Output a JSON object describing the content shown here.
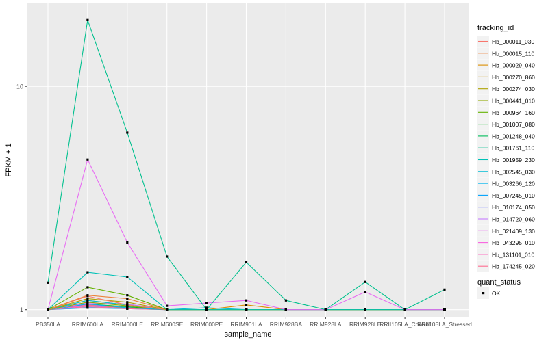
{
  "chart_data": {
    "type": "line",
    "xlabel": "sample_name",
    "ylabel": "FPKM + 1",
    "y_scale": "log10",
    "ylim": [
      0.93,
      23.5
    ],
    "y_ticks": [
      {
        "value": 1,
        "label": "1"
      },
      {
        "value": 10,
        "label": "10"
      }
    ],
    "grid": true,
    "categories": [
      "PB350LA",
      "RRIM600LA",
      "RRIM600LE",
      "RRIM600SE",
      "RRIM600PE",
      "RRIM901LA",
      "RRIM928BA",
      "RRIM928LA",
      "RRIM928LE",
      "RRII105LA_Control",
      "RRII105LA_Stressed"
    ],
    "legend": {
      "position": "right",
      "color_title": "tracking_id",
      "status_title": "quant_status",
      "status_items": [
        {
          "label": "OK",
          "shape": "point"
        }
      ]
    },
    "series": [
      {
        "name": "Hb_000011_030",
        "color": "#F8766D",
        "values": [
          1.0,
          1.15,
          1.05,
          1.0,
          1.0,
          1.0,
          1.0,
          1.0,
          1.0,
          1.0,
          1.0
        ]
      },
      {
        "name": "Hb_000015_110",
        "color": "#EC8239",
        "values": [
          1.0,
          1.16,
          1.12,
          1.0,
          1.0,
          1.0,
          1.0,
          1.0,
          1.0,
          1.0,
          1.0
        ]
      },
      {
        "name": "Hb_000029_040",
        "color": "#DB8E00",
        "values": [
          1.0,
          1.05,
          1.02,
          1.0,
          1.0,
          1.05,
          1.0,
          1.0,
          1.0,
          1.0,
          1.0
        ]
      },
      {
        "name": "Hb_000270_860",
        "color": "#C79800",
        "values": [
          1.0,
          1.1,
          1.05,
          1.0,
          1.0,
          1.0,
          1.0,
          1.0,
          1.0,
          1.0,
          1.0
        ]
      },
      {
        "name": "Hb_000274_030",
        "color": "#AEA200",
        "values": [
          1.0,
          1.12,
          1.08,
          1.0,
          1.0,
          1.0,
          1.0,
          1.0,
          1.0,
          1.0,
          1.0
        ]
      },
      {
        "name": "Hb_000441_010",
        "color": "#8FAA00",
        "values": [
          1.0,
          1.08,
          1.04,
          1.0,
          1.0,
          1.0,
          1.0,
          1.0,
          1.0,
          1.0,
          1.0
        ]
      },
      {
        "name": "Hb_000964_160",
        "color": "#64B200",
        "values": [
          1.0,
          1.26,
          1.16,
          1.0,
          1.0,
          1.0,
          1.0,
          1.0,
          1.0,
          1.0,
          1.0
        ]
      },
      {
        "name": "Hb_001007_080",
        "color": "#00B81B",
        "values": [
          1.0,
          1.06,
          1.03,
          1.0,
          1.0,
          1.0,
          1.0,
          1.0,
          1.0,
          1.0,
          1.0
        ]
      },
      {
        "name": "Hb_001248_040",
        "color": "#00BD5C",
        "values": [
          1.0,
          1.04,
          1.02,
          1.0,
          1.0,
          1.0,
          1.0,
          1.0,
          1.0,
          1.0,
          1.0
        ]
      },
      {
        "name": "Hb_001761_110",
        "color": "#00C08E",
        "values": [
          1.32,
          19.8,
          6.2,
          1.73,
          1.0,
          1.63,
          1.1,
          1.0,
          1.33,
          1.0,
          1.23
        ]
      },
      {
        "name": "Hb_001959_230",
        "color": "#00C1B7",
        "values": [
          1.0,
          1.47,
          1.4,
          1.0,
          1.0,
          1.0,
          1.0,
          1.0,
          1.0,
          1.0,
          1.0
        ]
      },
      {
        "name": "Hb_002545_030",
        "color": "#00BDD4",
        "values": [
          1.0,
          1.1,
          1.05,
          1.0,
          1.02,
          1.0,
          1.0,
          1.0,
          1.0,
          1.0,
          1.0
        ]
      },
      {
        "name": "Hb_003266_120",
        "color": "#00B5EE",
        "values": [
          1.0,
          1.06,
          1.02,
          1.0,
          1.0,
          1.0,
          1.0,
          1.0,
          1.0,
          1.0,
          1.0
        ]
      },
      {
        "name": "Hb_007245_010",
        "color": "#00A2FC",
        "values": [
          1.0,
          1.02,
          1.01,
          1.0,
          1.0,
          1.0,
          1.0,
          1.0,
          1.0,
          1.0,
          1.0
        ]
      },
      {
        "name": "Hb_010174_050",
        "color": "#8B93FF",
        "values": [
          1.0,
          1.03,
          1.02,
          1.0,
          1.0,
          1.0,
          1.0,
          1.0,
          1.0,
          1.0,
          1.0
        ]
      },
      {
        "name": "Hb_014720_060",
        "color": "#C77CFF",
        "values": [
          1.0,
          1.07,
          1.06,
          1.0,
          1.0,
          1.0,
          1.0,
          1.0,
          1.0,
          1.0,
          1.0
        ]
      },
      {
        "name": "Hb_021409_130",
        "color": "#E86BF3",
        "values": [
          1.0,
          4.7,
          2.0,
          1.04,
          1.07,
          1.1,
          1.0,
          1.0,
          1.2,
          1.0,
          1.0
        ]
      },
      {
        "name": "Hb_043295_010",
        "color": "#F863DF",
        "values": [
          1.0,
          1.04,
          1.02,
          1.0,
          1.0,
          1.0,
          1.0,
          1.0,
          1.0,
          1.0,
          1.0
        ]
      },
      {
        "name": "Hb_131101_010",
        "color": "#FF62BC",
        "values": [
          1.0,
          1.05,
          1.03,
          1.0,
          1.0,
          1.0,
          1.0,
          1.0,
          1.0,
          1.0,
          1.0
        ]
      },
      {
        "name": "Hb_174245_020",
        "color": "#FF6C91",
        "values": [
          1.0,
          1.03,
          1.01,
          1.0,
          1.0,
          1.0,
          1.0,
          1.0,
          1.0,
          1.0,
          1.0
        ]
      }
    ]
  }
}
